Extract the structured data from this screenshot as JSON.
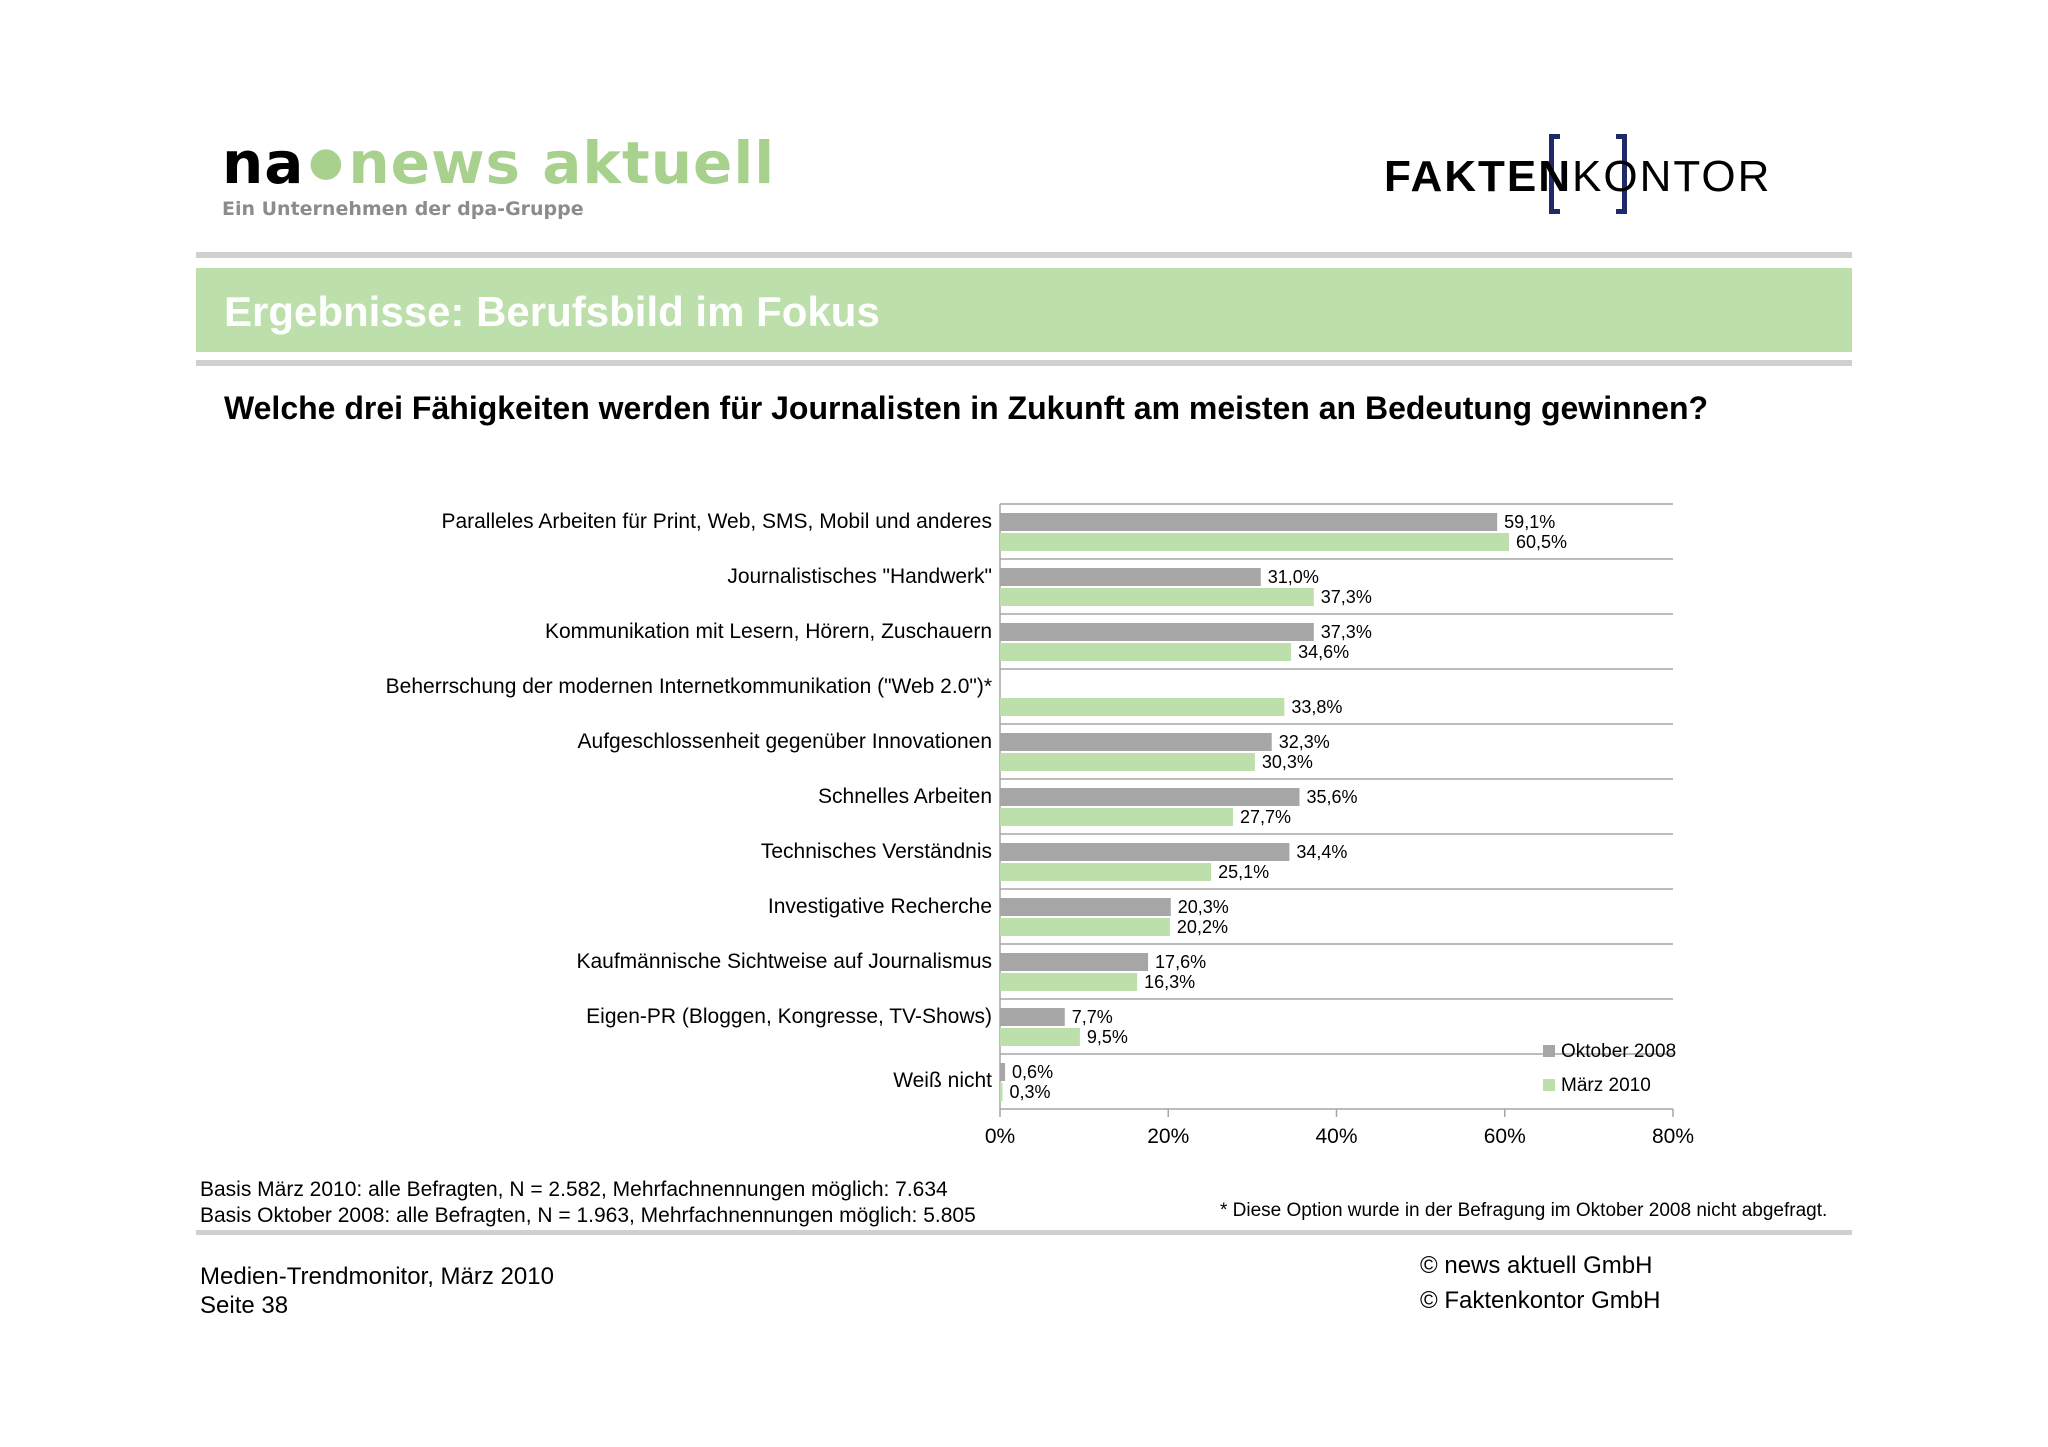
{
  "header": {
    "logo_left": {
      "word1": "na",
      "word2": "news aktuell",
      "tagline": "Ein Unternehmen der dpa-Gruppe"
    },
    "logo_right": {
      "bold": "FAKTEN",
      "light": "KONTOR"
    }
  },
  "banner": {
    "title": "Ergebnisse: Berufsbild im Fokus"
  },
  "question": "Welche drei Fähigkeiten werden für Journalisten in Zukunft am meisten an Bedeutung gewinnen?",
  "colors": {
    "series_okt_2008": "#a6a6a6",
    "series_maerz_2010": "#bcdfac",
    "banner": "#bcdfac",
    "rule": "#d0d0d0"
  },
  "chart_data": {
    "type": "bar",
    "orientation": "horizontal",
    "categories": [
      "Paralleles Arbeiten für Print, Web, SMS, Mobil und anderes",
      "Journalistisches \"Handwerk\"",
      "Kommunikation mit Lesern, Hörern, Zuschauern",
      "Beherrschung der modernen Internetkommunikation (\"Web 2.0\")*",
      "Aufgeschlossenheit gegenüber Innovationen",
      "Schnelles Arbeiten",
      "Technisches Verständnis",
      "Investigative Recherche",
      "Kaufmännische Sichtweise auf Journalismus",
      "Eigen-PR (Bloggen, Kongresse, TV-Shows)",
      "Weiß nicht"
    ],
    "series": [
      {
        "name": "Oktober 2008",
        "color": "#a6a6a6",
        "values": [
          59.1,
          31.0,
          37.3,
          null,
          32.3,
          35.6,
          34.4,
          20.3,
          17.6,
          7.7,
          0.6
        ],
        "labels": [
          "59,1%",
          "31,0%",
          "37,3%",
          null,
          "32,3%",
          "35,6%",
          "34,4%",
          "20,3%",
          "17,6%",
          "7,7%",
          "0,6%"
        ]
      },
      {
        "name": "März 2010",
        "color": "#bcdfac",
        "values": [
          60.5,
          37.3,
          34.6,
          33.8,
          30.3,
          27.7,
          25.1,
          20.2,
          16.3,
          9.5,
          0.3
        ],
        "labels": [
          "60,5%",
          "37,3%",
          "34,6%",
          "33,8%",
          "30,3%",
          "27,7%",
          "25,1%",
          "20,2%",
          "16,3%",
          "9,5%",
          "0,3%"
        ]
      }
    ],
    "xlim": [
      0,
      80
    ],
    "x_ticks": [
      "0%",
      "20%",
      "40%",
      "60%",
      "80%"
    ],
    "grid": "horizontal separators between categories",
    "legend_position": "bottom-right"
  },
  "notes": {
    "basis_2010": "Basis März 2010: alle Befragten, N = 2.582, Mehrfachnennungen möglich: 7.634",
    "basis_2008": "Basis Oktober 2008: alle Befragten, N = 1.963, Mehrfachnennungen möglich: 5.805",
    "footnote": "* Diese Option wurde in der Befragung im Oktober 2008 nicht abgefragt."
  },
  "footer": {
    "source": "Medien-Trendmonitor, März 2010",
    "page": "Seite 38",
    "copyright1": "© news aktuell GmbH",
    "copyright2": "© Faktenkontor GmbH"
  }
}
